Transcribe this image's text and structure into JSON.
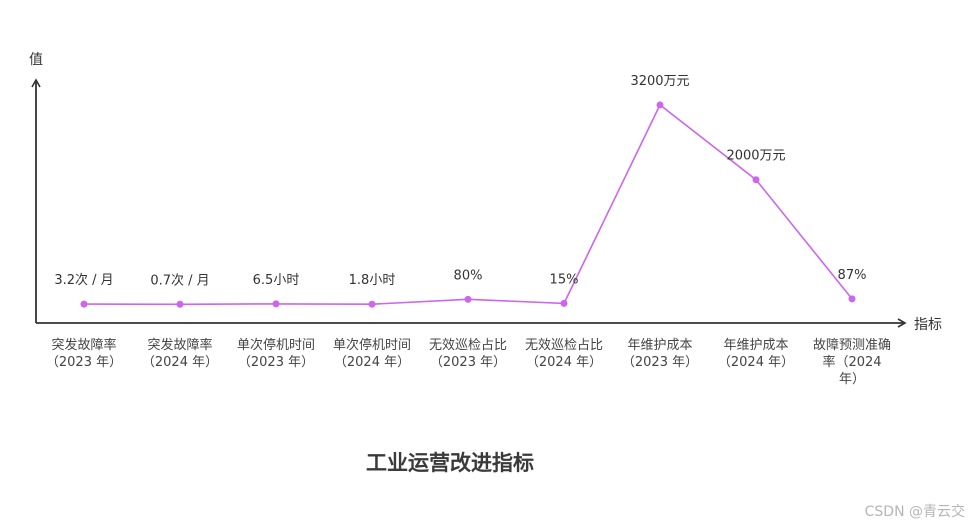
{
  "chart_data": {
    "type": "line",
    "title": "工业运营改进指标",
    "xlabel": "指标",
    "ylabel": "值",
    "categories": [
      [
        "突发故障率",
        "（2023 年）"
      ],
      [
        "突发故障率",
        "（2024 年）"
      ],
      [
        "单次停机时间",
        "（2023 年）"
      ],
      [
        "单次停机时间",
        "（2024 年）"
      ],
      [
        "无效巡检占比",
        "（2023 年）"
      ],
      [
        "无效巡检占比",
        "（2024 年）"
      ],
      [
        "年维护成本",
        "（2023 年）"
      ],
      [
        "年维护成本",
        "（2024 年）"
      ],
      [
        "故障预测准确",
        "率（2024",
        "年）"
      ]
    ],
    "values": [
      3.2,
      0.7,
      6.5,
      1.8,
      80,
      15,
      3200,
      2000,
      87
    ],
    "data_labels": [
      "3.2次 / 月",
      "0.7次 / 月",
      "6.5小时",
      "1.8小时",
      "80%",
      "15%",
      "3200万元",
      "2000万元",
      "87%"
    ],
    "ylim": [
      -300,
      3600
    ],
    "grid": false,
    "legend": "none",
    "colors": {
      "line": "#cc66ee",
      "axis": "#333333"
    }
  },
  "watermark": "CSDN @青云交"
}
